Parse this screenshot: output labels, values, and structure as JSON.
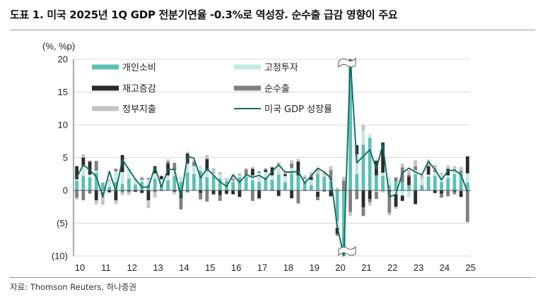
{
  "title": "도표 1. 미국 2025년 1Q GDP 전분기연율 -0.3%로 역성장. 순수출 급감 영향이 주요",
  "source": "자료: Thomson Reuters, 하나증권",
  "colors": {
    "consumption": "#5bc0b4",
    "investment": "#c2e9e4",
    "inventories": "#2b2b2b",
    "net_exports": "#808080",
    "government": "#c4c4c4",
    "gdp_line": "#156b62"
  },
  "chart_data": {
    "type": "bar",
    "stacked": true,
    "unit_label": "(%, %p)",
    "ylim": [
      -10,
      20
    ],
    "yticks": [
      20,
      15,
      10,
      5,
      0,
      -5,
      -10
    ],
    "ytick_labels": [
      "20",
      "15",
      "10",
      "5",
      "0",
      "(5)",
      "(10)"
    ],
    "x": [
      "2010Q1",
      "2010Q2",
      "2010Q3",
      "2010Q4",
      "2011Q1",
      "2011Q2",
      "2011Q3",
      "2011Q4",
      "2012Q1",
      "2012Q2",
      "2012Q3",
      "2012Q4",
      "2013Q1",
      "2013Q2",
      "2013Q3",
      "2013Q4",
      "2014Q1",
      "2014Q2",
      "2014Q3",
      "2014Q4",
      "2015Q1",
      "2015Q2",
      "2015Q3",
      "2015Q4",
      "2016Q1",
      "2016Q2",
      "2016Q3",
      "2016Q4",
      "2017Q1",
      "2017Q2",
      "2017Q3",
      "2017Q4",
      "2018Q1",
      "2018Q2",
      "2018Q3",
      "2018Q4",
      "2019Q1",
      "2019Q2",
      "2019Q3",
      "2019Q4",
      "2020Q1",
      "2020Q2",
      "2020Q3",
      "2020Q4",
      "2021Q1",
      "2021Q2",
      "2021Q3",
      "2021Q4",
      "2022Q1",
      "2022Q2",
      "2022Q3",
      "2022Q4",
      "2023Q1",
      "2023Q2",
      "2023Q3",
      "2023Q4",
      "2024Q1",
      "2024Q2",
      "2024Q3",
      "2024Q4",
      "2025Q1"
    ],
    "xtick_labels": [
      "10",
      "11",
      "12",
      "13",
      "14",
      "15",
      "16",
      "17",
      "18",
      "19",
      "20",
      "21",
      "22",
      "23",
      "24",
      "25"
    ],
    "axis_breaks": [
      20.9
    ],
    "legend_position": "top-left",
    "series": [
      {
        "name": "개인소비",
        "kind": "bar",
        "color_key": "consumption",
        "values": [
          1.5,
          2.2,
          2.0,
          2.7,
          1.2,
          0.5,
          1.3,
          1.0,
          1.8,
          0.9,
          1.3,
          0.8,
          1.8,
          0.9,
          1.5,
          2.2,
          1.3,
          2.7,
          2.5,
          3.0,
          2.0,
          2.2,
          1.8,
          1.4,
          1.3,
          2.0,
          2.1,
          1.5,
          1.3,
          2.0,
          1.6,
          2.4,
          1.2,
          2.6,
          2.3,
          1.3,
          0.8,
          2.5,
          2.1,
          1.4,
          -4.7,
          -24.0,
          25.5,
          2.5,
          7.0,
          8.0,
          2.3,
          2.2,
          0.8,
          1.4,
          1.2,
          0.8,
          2.5,
          0.8,
          2.1,
          2.2,
          1.3,
          1.9,
          2.5,
          2.7,
          1.2
        ]
      },
      {
        "name": "고정투자",
        "kind": "bar",
        "color_key": "investment",
        "values": [
          0.2,
          1.5,
          0.4,
          0.3,
          -0.3,
          1.0,
          1.6,
          1.8,
          1.5,
          0.7,
          0.3,
          0.9,
          0.8,
          0.8,
          0.8,
          0.9,
          0.6,
          1.4,
          1.3,
          0.8,
          1.0,
          0.5,
          0.6,
          0.1,
          0.2,
          0.3,
          0.4,
          0.8,
          1.4,
          0.8,
          0.7,
          1.3,
          1.0,
          0.8,
          0.0,
          0.5,
          0.8,
          -0.2,
          0.2,
          0.2,
          -1.0,
          -5.8,
          5.7,
          3.0,
          2.1,
          0.6,
          -0.2,
          0.5,
          1.2,
          -0.6,
          -0.8,
          -1.0,
          0.6,
          1.0,
          0.3,
          0.6,
          1.1,
          0.4,
          0.3,
          -0.1,
          1.4
        ]
      },
      {
        "name": "재고증감",
        "kind": "bar",
        "color_key": "inventories",
        "values": [
          2.0,
          1.3,
          2.0,
          -1.5,
          -0.1,
          -0.3,
          -1.5,
          2.6,
          -0.1,
          -0.2,
          -0.4,
          -1.5,
          1.1,
          0.5,
          1.8,
          -0.2,
          -1.2,
          1.5,
          0.1,
          -0.4,
          1.8,
          -0.6,
          -0.7,
          -0.5,
          -0.6,
          -1.0,
          0.1,
          1.0,
          -1.2,
          0.3,
          1.2,
          -0.8,
          0.3,
          -1.2,
          2.1,
          0.1,
          0.4,
          -0.8,
          -0.1,
          -0.9,
          -0.9,
          -3.8,
          6.0,
          1.4,
          -2.6,
          -1.3,
          2.2,
          4.6,
          -0.2,
          -1.9,
          -0.8,
          1.3,
          -2.1,
          0.0,
          1.3,
          -0.4,
          -0.5,
          1.0,
          -0.2,
          -0.9,
          2.6
        ]
      },
      {
        "name": "순수출",
        "kind": "bar",
        "color_key": "net_exports",
        "values": [
          -1.1,
          -1.5,
          -0.5,
          1.5,
          -0.2,
          0.0,
          0.4,
          -0.3,
          -0.2,
          0.1,
          0.3,
          0.2,
          -0.3,
          -0.1,
          0.3,
          1.1,
          -1.7,
          -0.3,
          0.4,
          -0.9,
          -1.7,
          0.1,
          -0.9,
          -0.1,
          0.2,
          0.1,
          0.6,
          -1.6,
          0.2,
          0.2,
          -0.1,
          -0.1,
          0.0,
          0.7,
          -2.0,
          -0.1,
          0.2,
          -0.5,
          -0.1,
          1.5,
          -0.3,
          1.5,
          -3.3,
          -1.3,
          -1.3,
          -0.5,
          -1.1,
          0.0,
          -3.2,
          0.6,
          2.3,
          0.3,
          0.6,
          0.0,
          0.0,
          0.3,
          -0.6,
          -0.9,
          -0.4,
          0.3,
          -4.8
        ]
      },
      {
        "name": "정부지출",
        "kind": "bar",
        "color_key": "government",
        "values": [
          -0.3,
          0.5,
          0.2,
          -0.6,
          -1.6,
          0.2,
          -0.6,
          -0.4,
          -0.4,
          -0.1,
          0.2,
          -1.2,
          -0.8,
          0.0,
          0.3,
          -0.4,
          0.1,
          0.3,
          0.3,
          -0.2,
          0.6,
          0.6,
          0.4,
          0.4,
          0.6,
          0.2,
          0.2,
          0.3,
          -0.2,
          0.1,
          0.2,
          0.6,
          0.3,
          0.5,
          0.4,
          0.4,
          0.6,
          0.9,
          0.5,
          0.6,
          0.4,
          0.6,
          -0.6,
          -0.1,
          0.9,
          -0.5,
          0.2,
          -0.3,
          -0.4,
          -0.3,
          0.6,
          0.7,
          0.9,
          0.6,
          1.0,
          0.8,
          0.3,
          0.5,
          0.9,
          0.6,
          -0.1
        ]
      },
      {
        "name": "미국 GDP 성장률",
        "kind": "line",
        "color_key": "gdp_line",
        "values": [
          2.0,
          3.9,
          3.1,
          2.1,
          -1.0,
          2.9,
          -0.1,
          4.7,
          3.2,
          1.7,
          0.5,
          0.5,
          3.6,
          0.5,
          3.2,
          3.2,
          -1.0,
          5.2,
          4.9,
          1.9,
          3.3,
          2.3,
          1.3,
          0.6,
          2.4,
          1.2,
          2.4,
          2.0,
          2.3,
          1.7,
          2.9,
          3.9,
          2.8,
          2.8,
          2.9,
          1.1,
          2.2,
          3.4,
          2.8,
          1.9,
          -5.5,
          -28.0,
          34.8,
          4.2,
          5.2,
          6.2,
          3.3,
          7.0,
          -1.0,
          -0.6,
          2.7,
          3.4,
          2.8,
          2.4,
          4.4,
          3.2,
          1.6,
          3.0,
          3.1,
          2.4,
          -0.3
        ]
      }
    ]
  }
}
